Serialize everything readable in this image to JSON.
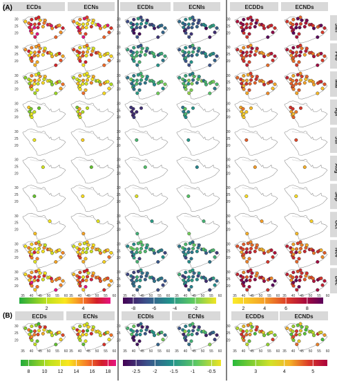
{
  "panel_labels": [
    "(A)",
    "(B)"
  ],
  "chart_data": {
    "type": "scatter",
    "groups": [
      {
        "headers": [
          "ECDs",
          "ECNs"
        ],
        "colorbar": {
          "palette": "green-yellow-red-magenta",
          "ticks": [
            "2",
            "4"
          ],
          "range": [
            0.5,
            5.5
          ]
        }
      },
      {
        "headers": [
          "ECDIs",
          "ECNIs"
        ],
        "colorbar": {
          "palette": "viridis-reversed",
          "ticks": [
            "-8",
            "-6",
            "-4",
            "-2"
          ],
          "range": [
            -9,
            0
          ]
        }
      },
      {
        "headers": [
          "ECDDs",
          "ECNDs"
        ],
        "colorbar": {
          "palette": "yellow-orange-red-purple",
          "ticks": [
            "2",
            "4",
            "6",
            "8"
          ],
          "range": [
            1,
            9.5
          ]
        }
      }
    ],
    "months": [
      "Jan",
      "Feb",
      "Mar",
      "Apr",
      "Jul",
      "Aug",
      "Sep",
      "Oct",
      "Nov",
      "Dec"
    ],
    "x_ticks": [
      "35",
      "40",
      "45",
      "50",
      "55",
      "60"
    ],
    "y_ticks": [
      "20",
      "25",
      "30"
    ],
    "panelB": [
      {
        "headers": [
          "ECDs",
          "ECNs"
        ],
        "colorbar": {
          "palette": "green-yellow-red-magenta",
          "ticks": [
            "8",
            "10",
            "12",
            "14",
            "16",
            "18"
          ]
        }
      },
      {
        "headers": [
          "ECDIs",
          "ECNIs"
        ],
        "colorbar": {
          "palette": "viridis-reversed",
          "ticks": [
            "-2.5",
            "-2",
            "-1.5",
            "-1",
            "-0.5"
          ]
        }
      },
      {
        "headers": [
          "ECDDs",
          "ECNDs"
        ],
        "colorbar": {
          "palette": "green-yellow-red",
          "ticks": [
            "3",
            "4",
            "5"
          ]
        }
      }
    ],
    "stations": [
      [
        36.5,
        28.4
      ],
      [
        38.5,
        27.2
      ],
      [
        39.8,
        26.2
      ],
      [
        38.9,
        24.1
      ],
      [
        39.6,
        21.5
      ],
      [
        40.2,
        20.0
      ],
      [
        42.1,
        17.1
      ],
      [
        43.4,
        19.3
      ],
      [
        40.1,
        22.4
      ],
      [
        41.7,
        23.9
      ],
      [
        42.0,
        26.4
      ],
      [
        43.8,
        24.0
      ],
      [
        44.4,
        26.7
      ],
      [
        46.7,
        24.6
      ],
      [
        47.4,
        27.3
      ],
      [
        49.5,
        26.0
      ],
      [
        50.6,
        26.2
      ],
      [
        51.5,
        25.3
      ],
      [
        54.3,
        24.4
      ],
      [
        55.3,
        25.2
      ],
      [
        56.2,
        25.5
      ],
      [
        58.2,
        23.6
      ],
      [
        45.0,
        29.3
      ],
      [
        47.9,
        29.2
      ],
      [
        52.0,
        23.4
      ],
      [
        57.0,
        20.5
      ],
      [
        54.1,
        17.0
      ],
      [
        44.2,
        31.5
      ],
      [
        40.1,
        29.8
      ],
      [
        42.7,
        30.5
      ]
    ]
  }
}
